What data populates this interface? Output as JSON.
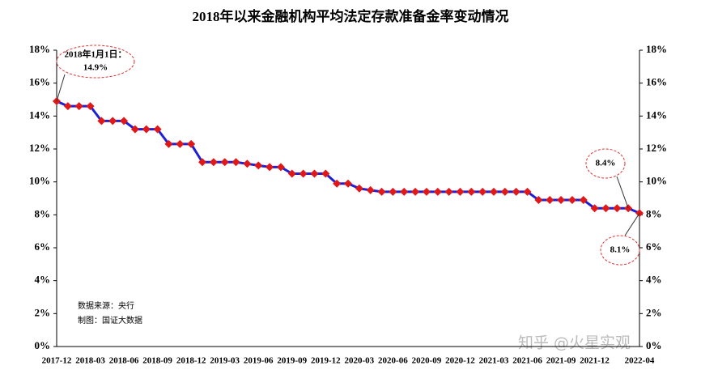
{
  "chart_data": {
    "type": "line",
    "title": "2018年以来金融机构平均法定存款准备金率变动情况",
    "categories": [
      "2017-12",
      null,
      null,
      "2018-03",
      null,
      null,
      "2018-06",
      null,
      null,
      "2018-09",
      null,
      null,
      "2018-12",
      null,
      null,
      "2019-03",
      null,
      null,
      "2019-06",
      null,
      null,
      "2019-09",
      null,
      null,
      "2019-12",
      null,
      null,
      "2020-03",
      null,
      null,
      "2020-06",
      null,
      null,
      "2020-09",
      null,
      null,
      "2020-12",
      null,
      null,
      "2021-03",
      null,
      null,
      "2021-06",
      null,
      null,
      "2021-09",
      null,
      null,
      "2021-12",
      null,
      null,
      null,
      "2022-04"
    ],
    "series": [
      {
        "name": "平均法定存款准备金率",
        "color": "#1f1fd6",
        "marker_color": "#e01818",
        "values": [
          14.9,
          14.6,
          14.6,
          14.6,
          13.7,
          13.7,
          13.7,
          13.2,
          13.2,
          13.2,
          12.3,
          12.3,
          12.3,
          11.2,
          11.2,
          11.2,
          11.2,
          11.1,
          11.0,
          10.9,
          10.9,
          10.5,
          10.5,
          10.5,
          10.5,
          9.9,
          9.9,
          9.6,
          9.5,
          9.4,
          9.4,
          9.4,
          9.4,
          9.4,
          9.4,
          9.4,
          9.4,
          9.4,
          9.4,
          9.4,
          9.4,
          9.4,
          9.4,
          8.9,
          8.9,
          8.9,
          8.9,
          8.9,
          8.4,
          8.4,
          8.4,
          8.4,
          8.1
        ]
      }
    ],
    "ylim": [
      0,
      18
    ],
    "yticks": [
      {
        "value": 0,
        "label": "0%"
      },
      {
        "value": 2,
        "label": "2%"
      },
      {
        "value": 4,
        "label": "4%"
      },
      {
        "value": 6,
        "label": "6%"
      },
      {
        "value": 8,
        "label": "8%"
      },
      {
        "value": 10,
        "label": "10%"
      },
      {
        "value": 12,
        "label": "12%"
      },
      {
        "value": 14,
        "label": "14%"
      },
      {
        "value": 16,
        "label": "16%"
      },
      {
        "value": 18,
        "label": "18%"
      }
    ],
    "y2lim": [
      0,
      18
    ],
    "grid": false,
    "annotations": [
      "2018年1月1日：",
      "14.9%",
      "8.4%",
      "8.1%"
    ],
    "source": "数据来源：央行",
    "credit": "制图：国证大数据",
    "watermark": "知乎 @火星实观"
  }
}
